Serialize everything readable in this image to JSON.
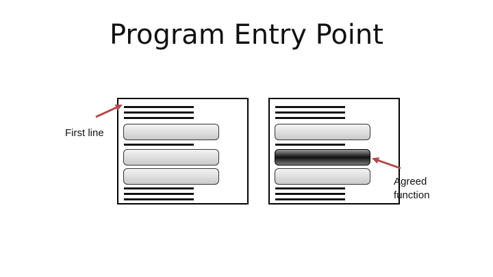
{
  "title": "Program Entry Point",
  "labels": {
    "first_line": "First line",
    "agreed_line1": "Agreed",
    "agreed_line2": "function"
  },
  "colors": {
    "arrow": "#b24a4a",
    "frame": "#000000",
    "block_light": "#d6d6d6",
    "block_dark": "#1a1a1a"
  }
}
